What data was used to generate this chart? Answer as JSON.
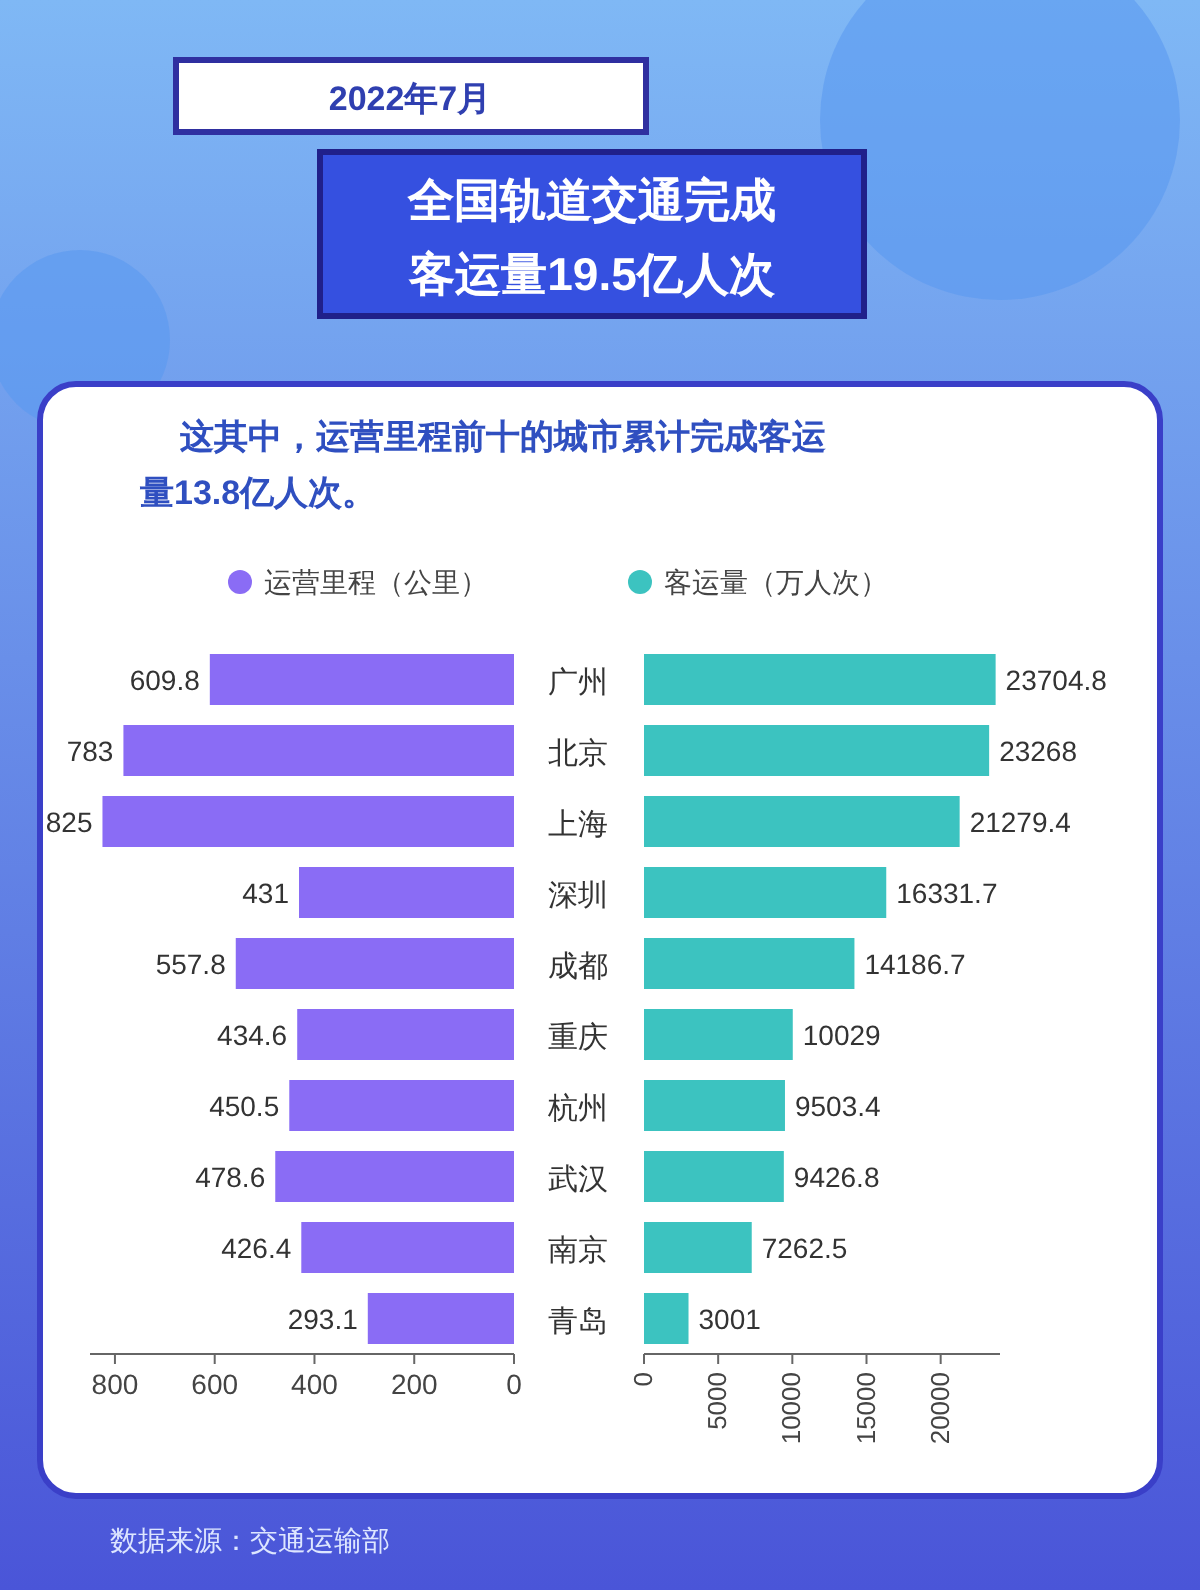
{
  "chart_data": [
    {
      "type": "bar",
      "orientation": "horizontal",
      "title": "2022年7月",
      "subtitle": "全国轨道交通完成客运量19.5亿人次",
      "annotations": [
        "这其中，运营里程前十的城市累计完成客运量13.8亿人次。",
        "数据来源：交通运输部"
      ],
      "categories": [
        "广州",
        "北京",
        "上海",
        "深圳",
        "成都",
        "重庆",
        "杭州",
        "武汉",
        "南京",
        "青岛"
      ],
      "series": [
        {
          "name": "运营里程（公里）",
          "color": "#8a6cf5",
          "values": [
            609.8,
            783,
            825,
            431,
            557.8,
            434.6,
            450.5,
            478.6,
            426.4,
            293.1
          ]
        }
      ],
      "xlim": [
        850,
        0
      ],
      "xticks": [
        800,
        600,
        400,
        200,
        0
      ],
      "data_labels": true,
      "legend": "top",
      "grid": false
    },
    {
      "type": "bar",
      "orientation": "horizontal",
      "categories": [
        null,
        null,
        null,
        null,
        null,
        null,
        null,
        null,
        null,
        null
      ],
      "series": [
        {
          "name": "客运量（万人次）",
          "color": "#3cc3c0",
          "values": [
            23704.8,
            23268,
            21279.4,
            16331.7,
            14186.7,
            10029,
            9503.4,
            9426.8,
            7262.5,
            3001
          ]
        }
      ],
      "xlim": [
        0,
        24000
      ],
      "xticks": [
        0,
        5000,
        10000,
        15000,
        20000
      ],
      "data_labels": true,
      "legend": "top",
      "grid": false,
      "tick_labels": "x"
    }
  ]
}
